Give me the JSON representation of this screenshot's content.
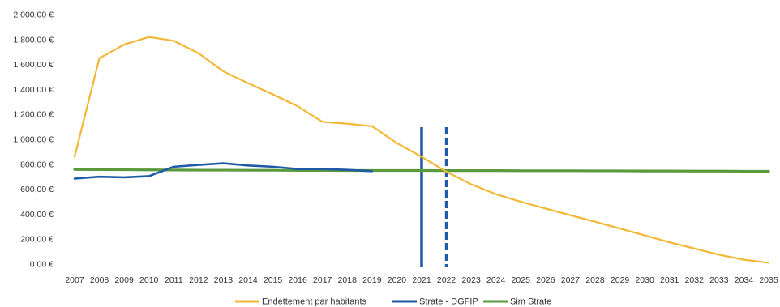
{
  "chart_data": {
    "type": "line",
    "title": "",
    "xlabel": "",
    "ylabel": "",
    "ylim": [
      0,
      2000
    ],
    "grid": false,
    "legend_position": "bottom",
    "y_ticks": [
      "0,00 €",
      "200,00 €",
      "400,00 €",
      "600,00 €",
      "800,00 €",
      "1 000,00 €",
      "1 200,00 €",
      "1 400,00 €",
      "1 600,00 €",
      "1 800,00 €",
      "2 000,00 €"
    ],
    "y_tick_values": [
      0,
      200,
      400,
      600,
      800,
      1000,
      1200,
      1400,
      1600,
      1800,
      2000
    ],
    "x": [
      "2007",
      "2008",
      "2009",
      "2010",
      "2011",
      "2012",
      "2013",
      "2014",
      "2015",
      "2016",
      "2017",
      "2018",
      "2019",
      "2020",
      "2021",
      "2022",
      "2023",
      "2024",
      "2025",
      "2026",
      "2027",
      "2028",
      "2029",
      "2030",
      "2031",
      "2032",
      "2033",
      "2034",
      "2035"
    ],
    "series": [
      {
        "name": "Endettement par habitants",
        "color": "#F2B734",
        "values": [
          860,
          1650,
          1760,
          1820,
          1790,
          1690,
          1545,
          1450,
          1360,
          1265,
          1140,
          1125,
          1105,
          970,
          860,
          740,
          640,
          560,
          500,
          445,
          392,
          340,
          285,
          230,
          175,
          125,
          75,
          35,
          10
        ]
      },
      {
        "name": "Strate - DGFIP",
        "color": "#1F5AA6",
        "values": [
          685,
          700,
          695,
          705,
          780,
          795,
          808,
          790,
          780,
          762,
          762,
          755,
          745,
          null,
          null,
          null,
          null,
          null,
          null,
          null,
          null,
          null,
          null,
          null,
          null,
          null,
          null,
          null,
          null
        ]
      },
      {
        "name": "Sim Strate",
        "color": "#5B9A3C",
        "values": [
          758,
          757,
          756,
          755,
          754,
          753,
          753,
          752,
          752,
          751,
          751,
          750,
          750,
          750,
          750,
          749,
          749,
          749,
          748,
          748,
          748,
          747,
          747,
          746,
          746,
          745,
          745,
          744,
          744
        ]
      }
    ],
    "markers": [
      {
        "x": "2021",
        "style": "solid",
        "color": "#1F5AA6"
      },
      {
        "x": "2022",
        "style": "dashed",
        "color": "#1F5AA6"
      }
    ]
  }
}
